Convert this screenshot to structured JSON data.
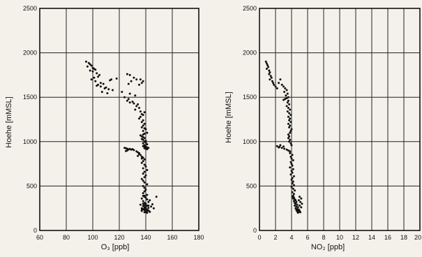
{
  "chart_data": [
    {
      "type": "scatter",
      "title": "",
      "xlabel": "O₃ [ppb]",
      "ylabel": "Hoehe [mMSL]",
      "xlim": [
        60,
        180
      ],
      "ylim": [
        0,
        2500
      ],
      "xticks": [
        "60",
        "80",
        "100",
        "120",
        "140",
        "160",
        "180"
      ],
      "yticks": [
        "0",
        "500",
        "1000",
        "1500",
        "2000",
        "2500"
      ],
      "grid": true,
      "series": [
        {
          "x": [
            95,
            97,
            98,
            99,
            96,
            100,
            101,
            102,
            98,
            100,
            103,
            105,
            104,
            101,
            99,
            102,
            106,
            108,
            104,
            103,
            110,
            109,
            112,
            115,
            107,
            106,
            111,
            114,
            118,
            113,
            126,
            128,
            131,
            133,
            129,
            127,
            136,
            138,
            137,
            135,
            122,
            128,
            132,
            124,
            127,
            126,
            130,
            128,
            131,
            134,
            133,
            135,
            132,
            136,
            139,
            137,
            138,
            136,
            135,
            138,
            137,
            139,
            138,
            137,
            139,
            140,
            138,
            141,
            139,
            138,
            136,
            137,
            138,
            139,
            137,
            138,
            140,
            139,
            140,
            138,
            141,
            139,
            138,
            140,
            139,
            141,
            142,
            139,
            140,
            141,
            124,
            125,
            126,
            128,
            130,
            127,
            129,
            131,
            126,
            125,
            133,
            134,
            135,
            135,
            136,
            134,
            137,
            138,
            137,
            139,
            138,
            137,
            139,
            140,
            138,
            141,
            139,
            138,
            140,
            139,
            137,
            138,
            139,
            141,
            138,
            139,
            140,
            139,
            138,
            141,
            138,
            139,
            140,
            137,
            141,
            143,
            138,
            142,
            139,
            140,
            145,
            136,
            139,
            141,
            138,
            144,
            140,
            139,
            142,
            137,
            140,
            138,
            141,
            139,
            142,
            137,
            140,
            143,
            139,
            141,
            138,
            142,
            140,
            146,
            139,
            137,
            141,
            143,
            139,
            148
          ],
          "y": [
            1900,
            1885,
            1870,
            1855,
            1845,
            1830,
            1820,
            1810,
            1800,
            1790,
            1770,
            1750,
            1730,
            1720,
            1700,
            1680,
            1660,
            1650,
            1640,
            1630,
            1610,
            1600,
            1590,
            1580,
            1560,
            1620,
            1545,
            1700,
            1710,
            1690,
            1760,
            1750,
            1720,
            1700,
            1680,
            1650,
            1700,
            1680,
            1660,
            1640,
            1560,
            1540,
            1520,
            1500,
            1480,
            1460,
            1450,
            1440,
            1430,
            1420,
            1400,
            1380,
            1360,
            1340,
            1330,
            1310,
            1300,
            1280,
            1260,
            1240,
            1220,
            1200,
            1180,
            1160,
            1150,
            1140,
            1120,
            1100,
            1090,
            1080,
            1070,
            1060,
            1050,
            1040,
            1030,
            1020,
            1010,
            1000,
            990,
            980,
            970,
            960,
            950,
            945,
            940,
            935,
            930,
            925,
            920,
            915,
            930,
            925,
            920,
            918,
            915,
            912,
            910,
            905,
            900,
            895,
            890,
            880,
            870,
            860,
            850,
            840,
            830,
            820,
            810,
            800,
            780,
            760,
            740,
            720,
            700,
            680,
            660,
            640,
            620,
            600,
            580,
            560,
            540,
            520,
            500,
            480,
            460,
            440,
            420,
            400,
            390,
            380,
            370,
            360,
            350,
            340,
            330,
            320,
            310,
            300,
            295,
            290,
            285,
            280,
            275,
            270,
            265,
            260,
            255,
            250,
            245,
            240,
            235,
            230,
            225,
            220,
            215,
            210,
            205,
            200,
            300,
            280,
            260,
            250,
            240,
            230,
            220,
            210,
            390,
            380
          ]
        }
      ]
    },
    {
      "type": "scatter",
      "title": "",
      "xlabel": "NO₂ [ppb]",
      "ylabel": "Hoehe [mMSL]",
      "xlim": [
        0,
        20
      ],
      "ylim": [
        0,
        2500
      ],
      "xticks": [
        "0",
        "2",
        "4",
        "6",
        "8",
        "10",
        "12",
        "14",
        "16",
        "18",
        "20"
      ],
      "yticks": [
        "0",
        "500",
        "1000",
        "1500",
        "2000",
        "2500"
      ],
      "grid": true,
      "series": [
        {
          "x": [
            0.8,
            0.9,
            1.0,
            1.1,
            0.9,
            1.2,
            1.3,
            1.2,
            1.4,
            1.5,
            1.3,
            1.6,
            1.7,
            1.8,
            2.0,
            2.2,
            2.6,
            2.4,
            2.8,
            3.0,
            3.2,
            3.4,
            3.1,
            3.5,
            3.3,
            3.6,
            3.4,
            3.2,
            3.0,
            3.6,
            3.5,
            3.7,
            3.4,
            3.6,
            3.8,
            3.5,
            3.7,
            3.9,
            3.6,
            3.8,
            3.7,
            3.9,
            3.6,
            3.8,
            3.7,
            4.0,
            3.9,
            3.8,
            3.6,
            3.7,
            2.2,
            2.5,
            2.8,
            3.1,
            3.4,
            3.6,
            3.8,
            2.6,
            3.0,
            2.4,
            3.6,
            3.8,
            3.7,
            3.9,
            4.0,
            3.8,
            4.1,
            3.9,
            4.0,
            4.2,
            3.9,
            4.0,
            4.1,
            3.8,
            4.2,
            4.0,
            4.1,
            3.9,
            4.3,
            4.1,
            4.0,
            4.2,
            4.1,
            4.3,
            4.0,
            4.2,
            4.4,
            4.1,
            4.3,
            4.2,
            4.1,
            4.3,
            4.2,
            4.4,
            4.5,
            4.3,
            4.6,
            4.4,
            4.5,
            4.7,
            4.4,
            4.6,
            4.8,
            4.5,
            4.7,
            4.9,
            4.6,
            4.8,
            5.0,
            4.7,
            4.9,
            5.1,
            4.8,
            5.0,
            5.2,
            4.9,
            5.1,
            5.3,
            5.0,
            5.2
          ],
          "y": [
            1900,
            1880,
            1860,
            1840,
            1820,
            1800,
            1780,
            1760,
            1740,
            1720,
            1700,
            1680,
            1660,
            1640,
            1620,
            1600,
            1700,
            1660,
            1640,
            1620,
            1600,
            1580,
            1560,
            1540,
            1520,
            1500,
            1490,
            1480,
            1470,
            1460,
            1440,
            1420,
            1400,
            1380,
            1360,
            1340,
            1320,
            1300,
            1280,
            1260,
            1240,
            1220,
            1200,
            1180,
            1160,
            1140,
            1120,
            1100,
            1080,
            1060,
            950,
            940,
            930,
            920,
            910,
            900,
            890,
            960,
            945,
            935,
            1040,
            1020,
            1000,
            980,
            960,
            870,
            850,
            830,
            810,
            790,
            770,
            750,
            730,
            710,
            690,
            670,
            650,
            630,
            610,
            590,
            570,
            550,
            530,
            510,
            490,
            470,
            450,
            430,
            410,
            390,
            380,
            370,
            360,
            350,
            340,
            330,
            320,
            310,
            300,
            290,
            280,
            270,
            260,
            250,
            240,
            235,
            230,
            225,
            220,
            215,
            210,
            205,
            200,
            380,
            360,
            340,
            320,
            300,
            280,
            260
          ]
        }
      ]
    }
  ]
}
